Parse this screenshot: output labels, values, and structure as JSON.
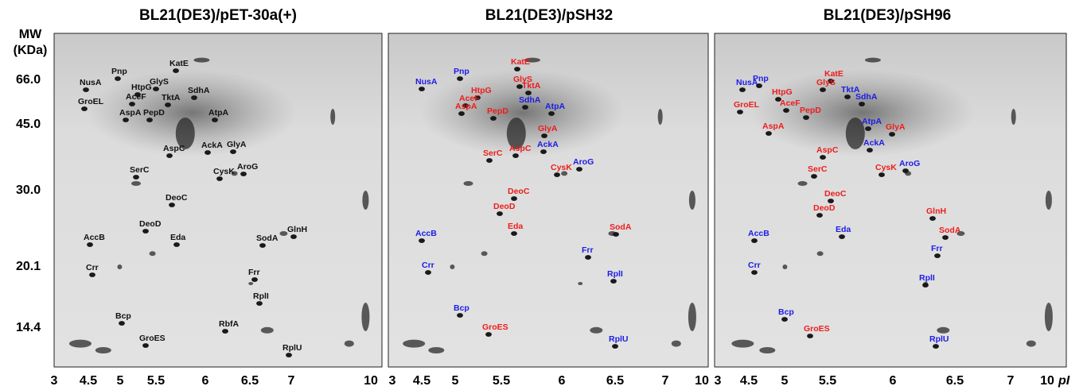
{
  "mw_axis": {
    "title": "MW",
    "unit": "(KDa)",
    "labels": [
      "66.0",
      "45.0",
      "30.0",
      "20.1",
      "14.4"
    ]
  },
  "pi_axis": {
    "labels": [
      "3",
      "4.5",
      "5",
      "5.5",
      "6",
      "6.5",
      "7",
      "10"
    ],
    "unit": "pI"
  },
  "panels": [
    {
      "title": "BL21(DE3)/pET-30a(+)",
      "spots": [
        {
          "label": "NusA",
          "color": "#111111"
        },
        {
          "label": "Pnp",
          "color": "#111111"
        },
        {
          "label": "HtpG",
          "color": "#111111"
        },
        {
          "label": "GlyS",
          "color": "#111111"
        },
        {
          "label": "KatE",
          "color": "#111111"
        },
        {
          "label": "AceF",
          "color": "#111111"
        },
        {
          "label": "TktA",
          "color": "#111111"
        },
        {
          "label": "SdhA",
          "color": "#111111"
        },
        {
          "label": "GroEL",
          "color": "#111111"
        },
        {
          "label": "AspA",
          "color": "#111111"
        },
        {
          "label": "PepD",
          "color": "#111111"
        },
        {
          "label": "AtpA",
          "color": "#111111"
        },
        {
          "label": "AspC",
          "color": "#111111"
        },
        {
          "label": "AckA",
          "color": "#111111"
        },
        {
          "label": "GlyA",
          "color": "#111111"
        },
        {
          "label": "SerC",
          "color": "#111111"
        },
        {
          "label": "CysK",
          "color": "#111111"
        },
        {
          "label": "AroG",
          "color": "#111111"
        },
        {
          "label": "DeoC",
          "color": "#111111"
        },
        {
          "label": "DeoD",
          "color": "#111111"
        },
        {
          "label": "Eda",
          "color": "#111111"
        },
        {
          "label": "GlnH",
          "color": "#111111"
        },
        {
          "label": "AccB",
          "color": "#111111"
        },
        {
          "label": "SodA",
          "color": "#111111"
        },
        {
          "label": "Frr",
          "color": "#111111"
        },
        {
          "label": "Crr",
          "color": "#111111"
        },
        {
          "label": "RplI",
          "color": "#111111"
        },
        {
          "label": "Bcp",
          "color": "#111111"
        },
        {
          "label": "RbfA",
          "color": "#111111"
        },
        {
          "label": "GroES",
          "color": "#111111"
        },
        {
          "label": "RplU",
          "color": "#111111"
        }
      ]
    },
    {
      "title": "BL21(DE3)/pSH32",
      "spots": [
        {
          "label": "NusA",
          "color": "#1c1ce8"
        },
        {
          "label": "Pnp",
          "color": "#1c1ce8"
        },
        {
          "label": "KatE",
          "color": "#ee1c1c"
        },
        {
          "label": "GlyS",
          "color": "#ee1c1c"
        },
        {
          "label": "TktA",
          "color": "#ee1c1c"
        },
        {
          "label": "HtpG",
          "color": "#ee1c1c"
        },
        {
          "label": "AceF",
          "color": "#ee1c1c"
        },
        {
          "label": "SdhA",
          "color": "#1c1ce8"
        },
        {
          "label": "AtpA",
          "color": "#1c1ce8"
        },
        {
          "label": "AspA",
          "color": "#ee1c1c"
        },
        {
          "label": "PepD",
          "color": "#ee1c1c"
        },
        {
          "label": "GlyA",
          "color": "#ee1c1c"
        },
        {
          "label": "AspC",
          "color": "#ee1c1c"
        },
        {
          "label": "AckA",
          "color": "#1c1ce8"
        },
        {
          "label": "SerC",
          "color": "#ee1c1c"
        },
        {
          "label": "AroG",
          "color": "#1c1ce8"
        },
        {
          "label": "CysK",
          "color": "#ee1c1c"
        },
        {
          "label": "DeoC",
          "color": "#ee1c1c"
        },
        {
          "label": "DeoD",
          "color": "#ee1c1c"
        },
        {
          "label": "Eda",
          "color": "#ee1c1c"
        },
        {
          "label": "SodA",
          "color": "#ee1c1c"
        },
        {
          "label": "AccB",
          "color": "#1c1ce8"
        },
        {
          "label": "Frr",
          "color": "#1c1ce8"
        },
        {
          "label": "Crr",
          "color": "#1c1ce8"
        },
        {
          "label": "RplI",
          "color": "#1c1ce8"
        },
        {
          "label": "Bcp",
          "color": "#1c1ce8"
        },
        {
          "label": "GroES",
          "color": "#ee1c1c"
        },
        {
          "label": "RplU",
          "color": "#1c1ce8"
        }
      ]
    },
    {
      "title": "BL21(DE3)/pSH96",
      "spots": [
        {
          "label": "NusA",
          "color": "#1c1ce8"
        },
        {
          "label": "Pnp",
          "color": "#1c1ce8"
        },
        {
          "label": "KatE",
          "color": "#ee1c1c"
        },
        {
          "label": "GlyS",
          "color": "#ee1c1c"
        },
        {
          "label": "TktA",
          "color": "#1c1ce8"
        },
        {
          "label": "HtpG",
          "color": "#ee1c1c"
        },
        {
          "label": "SdhA",
          "color": "#1c1ce8"
        },
        {
          "label": "GroEL",
          "color": "#ee1c1c"
        },
        {
          "label": "AceF",
          "color": "#ee1c1c"
        },
        {
          "label": "PepD",
          "color": "#ee1c1c"
        },
        {
          "label": "AtpA",
          "color": "#1c1ce8"
        },
        {
          "label": "AspA",
          "color": "#ee1c1c"
        },
        {
          "label": "GlyA",
          "color": "#ee1c1c"
        },
        {
          "label": "AckA",
          "color": "#1c1ce8"
        },
        {
          "label": "AspC",
          "color": "#ee1c1c"
        },
        {
          "label": "SerC",
          "color": "#ee1c1c"
        },
        {
          "label": "CysK",
          "color": "#ee1c1c"
        },
        {
          "label": "AroG",
          "color": "#1c1ce8"
        },
        {
          "label": "DeoC",
          "color": "#ee1c1c"
        },
        {
          "label": "DeoD",
          "color": "#ee1c1c"
        },
        {
          "label": "GlnH",
          "color": "#ee1c1c"
        },
        {
          "label": "Eda",
          "color": "#1c1ce8"
        },
        {
          "label": "SodA",
          "color": "#ee1c1c"
        },
        {
          "label": "AccB",
          "color": "#1c1ce8"
        },
        {
          "label": "Frr",
          "color": "#1c1ce8"
        },
        {
          "label": "Crr",
          "color": "#1c1ce8"
        },
        {
          "label": "RplI",
          "color": "#1c1ce8"
        },
        {
          "label": "Bcp",
          "color": "#1c1ce8"
        },
        {
          "label": "GroES",
          "color": "#ee1c1c"
        },
        {
          "label": "RplU",
          "color": "#1c1ce8"
        }
      ]
    }
  ]
}
